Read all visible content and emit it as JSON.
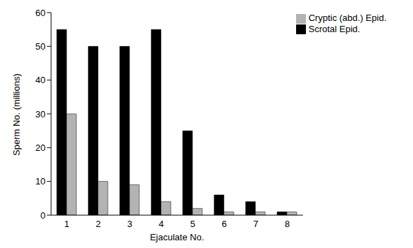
{
  "chart_data": {
    "type": "bar",
    "x_label": "Ejaculate No.",
    "y_label": "Sperm No. (millions)",
    "categories": [
      "1",
      "2",
      "3",
      "4",
      "5",
      "6",
      "7",
      "8"
    ],
    "series": [
      {
        "name": "Scrotal Epid.",
        "color": "#000000",
        "values": [
          55,
          50,
          50,
          55,
          25,
          6,
          4,
          1
        ]
      },
      {
        "name": "Cryptic (abd.) Epid.",
        "color": "#b3b3b3",
        "values": [
          30,
          10,
          9,
          4,
          2,
          1,
          1,
          1
        ]
      }
    ],
    "ylim": [
      0,
      60
    ],
    "yticks": [
      0,
      10,
      20,
      30,
      40,
      50,
      60
    ],
    "grid": false,
    "legend": "upper right"
  }
}
